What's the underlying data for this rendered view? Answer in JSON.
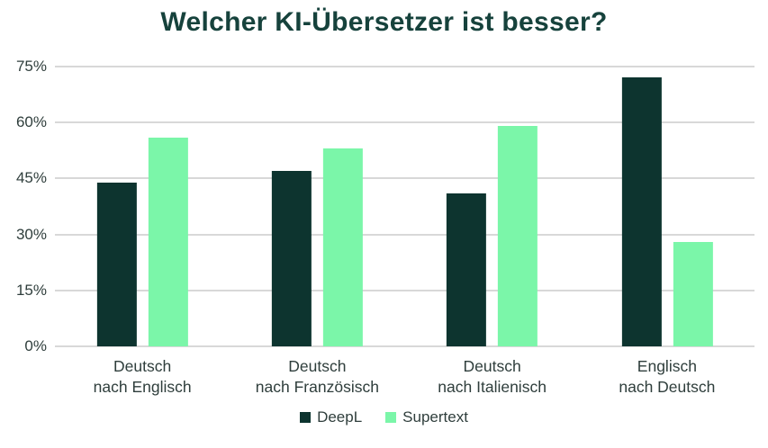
{
  "chart_data": {
    "type": "bar",
    "title": "Welcher KI-Übersetzer ist besser?",
    "categories": [
      {
        "line1": "Deutsch",
        "line2": "nach Englisch"
      },
      {
        "line1": "Deutsch",
        "line2": "nach Französisch"
      },
      {
        "line1": "Deutsch",
        "line2": "nach Italienisch"
      },
      {
        "line1": "Englisch",
        "line2": "nach Deutsch"
      }
    ],
    "series": [
      {
        "name": "DeepL",
        "color": "#0d342f",
        "values": [
          44,
          47,
          41,
          72
        ]
      },
      {
        "name": "Supertext",
        "color": "#7bf6a9",
        "values": [
          56,
          53,
          59,
          28
        ]
      }
    ],
    "y_ticks": [
      "0%",
      "15%",
      "30%",
      "45%",
      "60%",
      "75%"
    ],
    "y_tick_values": [
      0,
      15,
      30,
      45,
      60,
      75
    ],
    "ylim": [
      0,
      75
    ],
    "xlabel": "",
    "ylabel": "",
    "grid": "horizontal",
    "legend_position": "bottom",
    "unit": "%"
  },
  "colors": {
    "title_text": "#16423c",
    "axis_text": "#2f3e3c",
    "gridline": "#d8d8d8",
    "background": "#ffffff"
  }
}
